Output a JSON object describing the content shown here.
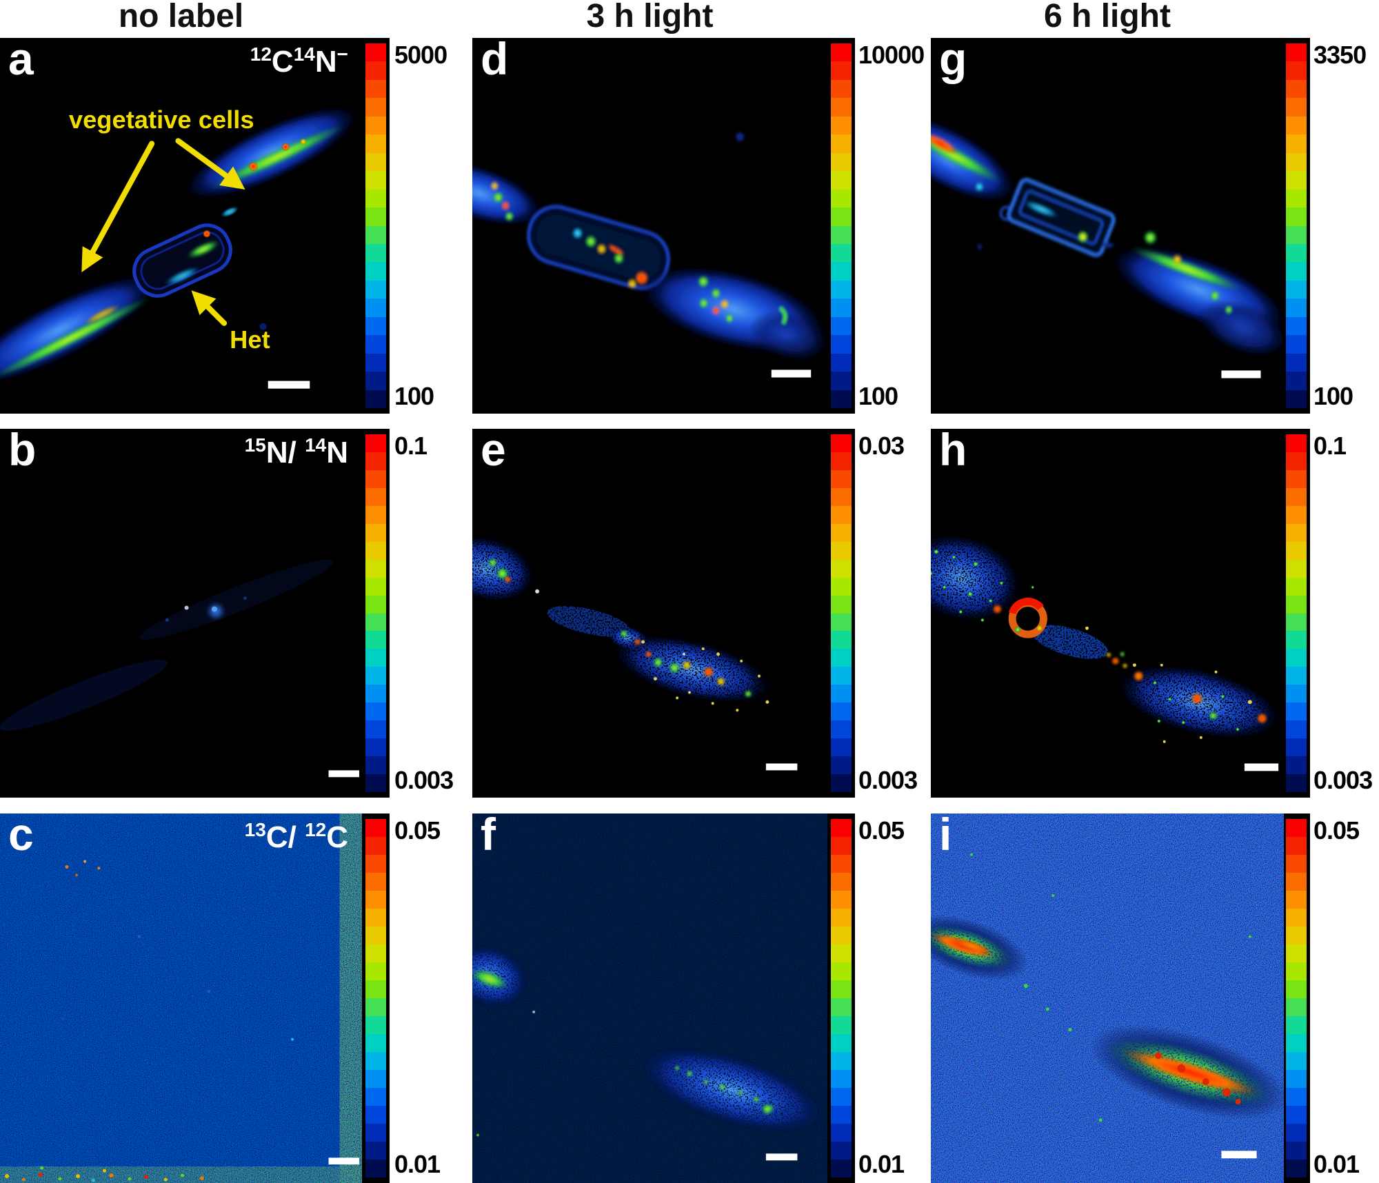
{
  "columns": [
    {
      "header": "no label"
    },
    {
      "header": "3 h light"
    },
    {
      "header": "6 h light"
    }
  ],
  "row_signal_labels": {
    "cn": {
      "sup1": "12",
      "base1": "C",
      "sup2": "14",
      "base2": "N",
      "sup3": "−"
    },
    "n_ratio": {
      "sup1": "15",
      "base1": "N/ ",
      "sup2": "14",
      "base2": "N"
    },
    "c_ratio": {
      "sup1": "13",
      "base1": "C/ ",
      "sup2": "12",
      "base2": "C"
    }
  },
  "panels": {
    "a": {
      "letter": "a",
      "colorbar_max": "5000",
      "colorbar_min": "100"
    },
    "b": {
      "letter": "b",
      "colorbar_max": "0.1",
      "colorbar_min": "0.003"
    },
    "c": {
      "letter": "c",
      "colorbar_max": "0.05",
      "colorbar_min": "0.01"
    },
    "d": {
      "letter": "d",
      "colorbar_max": "10000",
      "colorbar_min": "100"
    },
    "e": {
      "letter": "e",
      "colorbar_max": "0.03",
      "colorbar_min": "0.003"
    },
    "f": {
      "letter": "f",
      "colorbar_max": "0.05",
      "colorbar_min": "0.01"
    },
    "g": {
      "letter": "g",
      "colorbar_max": "3350",
      "colorbar_min": "100"
    },
    "h": {
      "letter": "h",
      "colorbar_max": "0.1",
      "colorbar_min": "0.003"
    },
    "i": {
      "letter": "i",
      "colorbar_max": "0.05",
      "colorbar_min": "0.01"
    }
  },
  "annotations": {
    "vegetative_cells": "vegetative cells",
    "het": "Het"
  },
  "colors": {
    "annotation_yellow": "#f2dd00",
    "panel_background": "#000000",
    "colorbar": [
      "#fb0000",
      "#f52400",
      "#fa4a00",
      "#fc6d00",
      "#fd8f00",
      "#f8b000",
      "#e9c900",
      "#cfdf00",
      "#a8e800",
      "#78e414",
      "#44df55",
      "#12d995",
      "#00cfc4",
      "#00b4e8",
      "#0090f4",
      "#0068ee",
      "#0045dc",
      "#002cb8",
      "#001a86",
      "#000c50"
    ]
  }
}
